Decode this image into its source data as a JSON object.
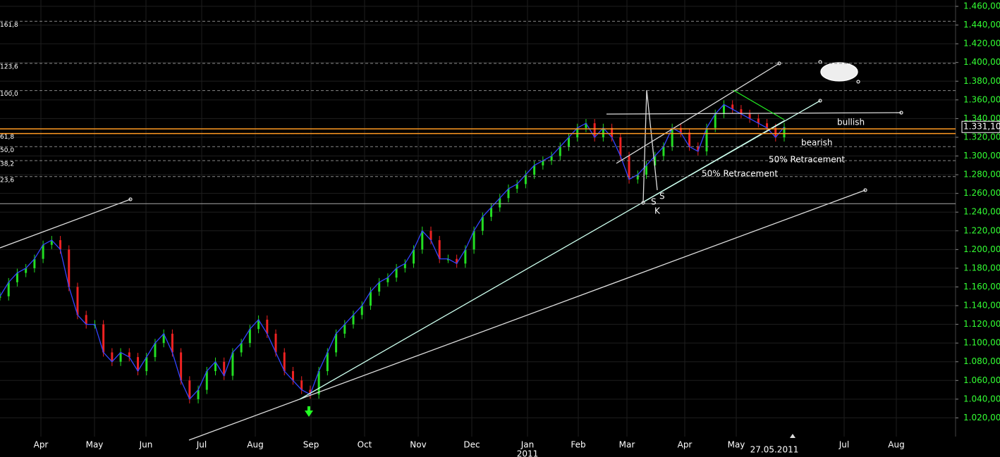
{
  "chart_data": {
    "type": "candle",
    "values": [
      1.15,
      1.165,
      1.175,
      1.18,
      1.19,
      1.205,
      1.21,
      1.2,
      1.16,
      1.13,
      1.12,
      1.12,
      1.09,
      1.08,
      1.09,
      1.085,
      1.07,
      1.085,
      1.1,
      1.11,
      1.09,
      1.06,
      1.04,
      1.05,
      1.07,
      1.08,
      1.065,
      1.09,
      1.1,
      1.115,
      1.125,
      1.11,
      1.09,
      1.07,
      1.06,
      1.05,
      1.045,
      1.07,
      1.09,
      1.11,
      1.12,
      1.13,
      1.14,
      1.155,
      1.165,
      1.17,
      1.18,
      1.185,
      1.2,
      1.22,
      1.21,
      1.19,
      1.19,
      1.185,
      1.2,
      1.22,
      1.235,
      1.245,
      1.255,
      1.265,
      1.27,
      1.28,
      1.29,
      1.295,
      1.3,
      1.31,
      1.32,
      1.33,
      1.335,
      1.32,
      1.33,
      1.32,
      1.3,
      1.275,
      1.28,
      1.29,
      1.3,
      1.31,
      1.33,
      1.325,
      1.31,
      1.305,
      1.33,
      1.345,
      1.355,
      1.35,
      1.345,
      1.34,
      1.335,
      1.33,
      1.32,
      1.331
    ],
    "up_color": "#22dd22",
    "down_color": "#ee2222",
    "ylim": [
      1.0,
      1.4668
    ],
    "yticks": [
      {
        "value": 1.46,
        "label": "1.460,00"
      },
      {
        "value": 1.44,
        "label": "1.440,00"
      },
      {
        "value": 1.42,
        "label": "1.420,00"
      },
      {
        "value": 1.4,
        "label": "1.400,00"
      },
      {
        "value": 1.38,
        "label": "1.380,00"
      },
      {
        "value": 1.36,
        "label": "1.360,00"
      },
      {
        "value": 1.34,
        "label": "1.340,00"
      },
      {
        "value": 1.32,
        "label": "1.320,00"
      },
      {
        "value": 1.3,
        "label": "1.300,00"
      },
      {
        "value": 1.28,
        "label": "1.280,00"
      },
      {
        "value": 1.26,
        "label": "1.260,00"
      },
      {
        "value": 1.24,
        "label": "1.240,00"
      },
      {
        "value": 1.22,
        "label": "1.220,00"
      },
      {
        "value": 1.2,
        "label": "1.200,00"
      },
      {
        "value": 1.18,
        "label": "1.180,00"
      },
      {
        "value": 1.16,
        "label": "1.160,00"
      },
      {
        "value": 1.14,
        "label": "1.140,00"
      },
      {
        "value": 1.12,
        "label": "1.120,00"
      },
      {
        "value": 1.1,
        "label": "1.100,00"
      },
      {
        "value": 1.08,
        "label": "1.080,00"
      },
      {
        "value": 1.06,
        "label": "1.060,00"
      },
      {
        "value": 1.04,
        "label": "1.040,00"
      },
      {
        "value": 1.02,
        "label": "1.020,00"
      }
    ],
    "x_labels": [
      "Apr",
      "May",
      "Jun",
      "Jul",
      "Aug",
      "Sep",
      "Oct",
      "Nov",
      "Dec",
      "Jan",
      "Feb",
      "Mar",
      "Apr",
      "May",
      "Jul",
      "Aug"
    ],
    "year_label": "2011",
    "date_label": "27.05.2011",
    "last_price": {
      "value": 1.3311,
      "label": "1.331,10"
    },
    "levels": [
      {
        "label": "161,8",
        "value": 1.444
      },
      {
        "label": "123,6",
        "value": 1.399
      },
      {
        "label": "100,0",
        "value": 1.37
      },
      {
        "label": "61,8",
        "value": 1.324
      },
      {
        "label": "50,0",
        "value": 1.31
      },
      {
        "label": "38,2",
        "value": 1.295
      },
      {
        "label": "23,6",
        "value": 1.278
      }
    ],
    "orange_levels": [
      1.329,
      1.324
    ],
    "support_level": 1.249,
    "annotations": [
      {
        "text": "bullish",
        "color": "#33ff33"
      },
      {
        "text": "bearish",
        "color": "#ee2222"
      },
      {
        "text": "50% Retracement",
        "color": "#ffffff"
      },
      {
        "text": "50% Retracement",
        "color": "#ffffff"
      },
      {
        "text": "S",
        "color": "#ffffff"
      },
      {
        "text": "S",
        "color": "#ffffff"
      },
      {
        "text": "K",
        "color": "#ffffff"
      }
    ]
  }
}
